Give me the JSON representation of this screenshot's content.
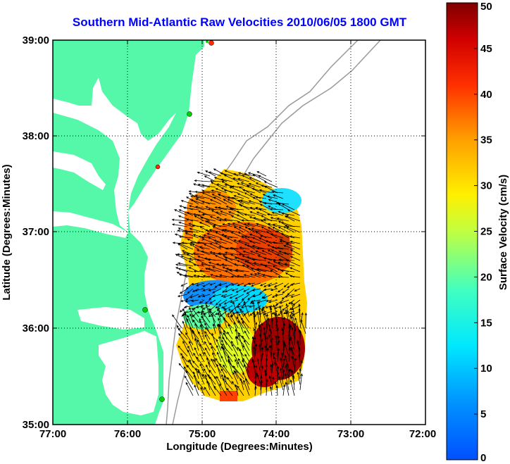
{
  "title": "Southern Mid-Atlantic Raw Velocities 2010/06/05 1800 GMT",
  "x_axis": {
    "label": "Longitude (Degrees:Minutes)",
    "ticks": [
      "77:00",
      "76:00",
      "75:00",
      "74:00",
      "73:00",
      "72:00"
    ]
  },
  "y_axis": {
    "label": "Latitude (Degrees:Minutes)",
    "ticks": [
      "39:00",
      "38:00",
      "37:00",
      "36:00",
      "35:00"
    ]
  },
  "colorbar": {
    "label": "Surface Velocity (cm/s)",
    "ticks": [
      "50",
      "45",
      "40",
      "35",
      "30",
      "25",
      "20",
      "15",
      "10",
      "5",
      "0"
    ],
    "min": 0,
    "max": 50
  },
  "colors": {
    "land": "#55f7a9",
    "title": "#0000ff",
    "station_green": "#00d200",
    "station_red": "#ff2a00"
  }
}
